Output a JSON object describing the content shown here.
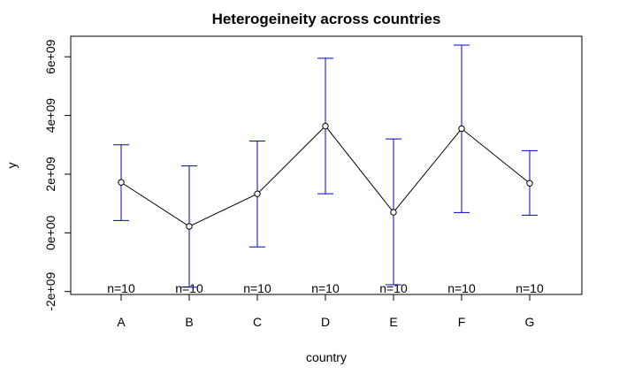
{
  "chart_data": {
    "type": "line",
    "title": "Heterogeineity across countries",
    "xlabel": "country",
    "ylabel": "y",
    "categories": [
      "A",
      "B",
      "C",
      "D",
      "E",
      "F",
      "G"
    ],
    "values": [
      1720000000.0,
      220000000.0,
      1330000000.0,
      3640000000.0,
      700000000.0,
      3550000000.0,
      1690000000.0
    ],
    "error_low": [
      420000000.0,
      -1850000000.0,
      -480000000.0,
      1330000000.0,
      -1770000000.0,
      690000000.0,
      600000000.0
    ],
    "error_high": [
      3000000000.0,
      2280000000.0,
      3130000000.0,
      5950000000.0,
      3200000000.0,
      6400000000.0,
      2800000000.0
    ],
    "sample_labels": [
      "n=10",
      "n=10",
      "n=10",
      "n=10",
      "n=10",
      "n=10",
      "n=10"
    ],
    "yticks": [
      -2000000000.0,
      0,
      2000000000.0,
      4000000000.0,
      6000000000.0
    ],
    "ytick_labels": [
      "-2e+09",
      "0e+00",
      "2e+09",
      "4e+09",
      "6e+09"
    ],
    "ylim": [
      -2100000000.0,
      6700000000.0
    ],
    "grid": false,
    "line_color": "#000000",
    "errorbar_color": "#0000cc",
    "marker": "open-circle"
  }
}
